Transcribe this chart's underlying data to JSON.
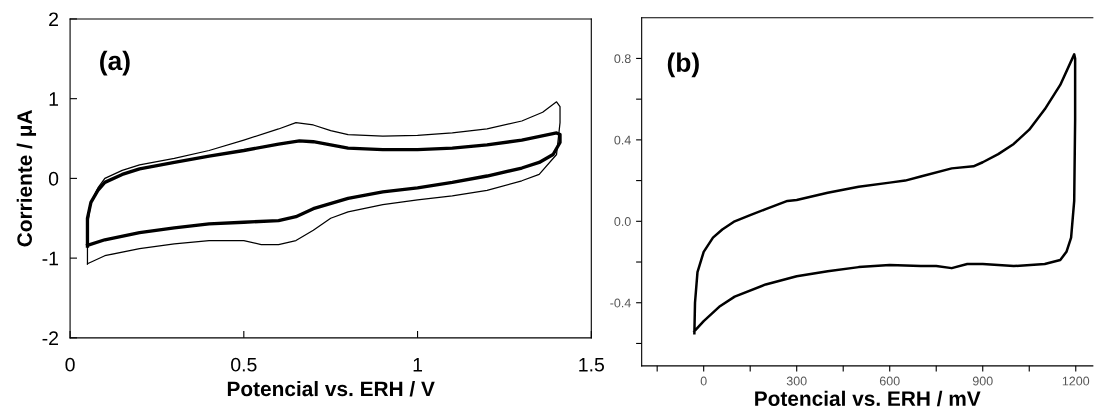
{
  "chart_data": [
    {
      "type": "line",
      "xlabel": "Potencial vs. ERH / V",
      "ylabel": "Corriente / μA",
      "annotations": [
        "(a)"
      ],
      "xlim": [
        0,
        1.5
      ],
      "ylim": [
        -2,
        2
      ],
      "xticks": [
        0,
        0.5,
        1,
        1.5
      ],
      "yticks": [
        {
          "value": -2,
          "label": "-2"
        },
        {
          "value": -1,
          "label": "-1"
        },
        0,
        1,
        2
      ],
      "grid": false,
      "legend": false,
      "marker": "none",
      "line_style": "solid",
      "series": [
        {
          "color": "#000000",
          "x": [
            0.05,
            0.05,
            0.06,
            0.08,
            0.1,
            0.15,
            0.2,
            0.3,
            0.4,
            0.5,
            0.6,
            0.66,
            0.7,
            0.8,
            0.9,
            1.0,
            1.1,
            1.2,
            1.3,
            1.4,
            1.41,
            1.41,
            1.39,
            1.35,
            1.3,
            1.2,
            1.1,
            1.0,
            0.9,
            0.8,
            0.7,
            0.65,
            0.6,
            0.5,
            0.4,
            0.3,
            0.2,
            0.1,
            0.05
          ],
          "values": [
            -0.85,
            -0.5,
            -0.3,
            -0.15,
            -0.05,
            0.05,
            0.12,
            0.2,
            0.28,
            0.35,
            0.43,
            0.47,
            0.46,
            0.38,
            0.36,
            0.36,
            0.38,
            0.42,
            0.48,
            0.57,
            0.55,
            0.45,
            0.3,
            0.2,
            0.13,
            0.03,
            -0.05,
            -0.12,
            -0.17,
            -0.25,
            -0.38,
            -0.48,
            -0.53,
            -0.55,
            -0.57,
            -0.62,
            -0.68,
            -0.77,
            -0.84
          ]
        },
        {
          "color": "#000000",
          "x": [
            0.05,
            0.05,
            0.06,
            0.08,
            0.1,
            0.15,
            0.2,
            0.3,
            0.4,
            0.5,
            0.6,
            0.65,
            0.7,
            0.75,
            0.8,
            0.9,
            1.0,
            1.1,
            1.2,
            1.3,
            1.36,
            1.4,
            1.41,
            1.41,
            1.4,
            1.35,
            1.3,
            1.2,
            1.1,
            1.0,
            0.9,
            0.8,
            0.75,
            0.7,
            0.65,
            0.6,
            0.55,
            0.5,
            0.4,
            0.3,
            0.2,
            0.1,
            0.05
          ],
          "values": [
            -1.08,
            -0.6,
            -0.3,
            -0.12,
            0.0,
            0.1,
            0.17,
            0.25,
            0.35,
            0.48,
            0.62,
            0.7,
            0.67,
            0.6,
            0.55,
            0.53,
            0.54,
            0.57,
            0.62,
            0.72,
            0.83,
            0.96,
            0.9,
            0.7,
            0.3,
            0.05,
            -0.03,
            -0.15,
            -0.22,
            -0.27,
            -0.33,
            -0.42,
            -0.5,
            -0.65,
            -0.78,
            -0.83,
            -0.83,
            -0.78,
            -0.78,
            -0.82,
            -0.88,
            -0.97,
            -1.07
          ]
        }
      ]
    },
    {
      "type": "line",
      "xlabel": "Potencial vs. ERH / mV",
      "annotations": [
        "(b)"
      ],
      "xlim": [
        -200,
        1255
      ],
      "ylim": [
        -0.71,
        1.0
      ],
      "xticks": [
        {
          "value": -150,
          "label": null
        },
        0,
        {
          "value": 150,
          "label": null
        },
        300,
        {
          "value": 450,
          "label": null
        },
        600,
        {
          "value": 750,
          "label": null
        },
        900,
        {
          "value": 1050,
          "label": null
        },
        1200
      ],
      "yticks": [
        {
          "value": -0.6,
          "label": null
        },
        {
          "value": -0.4,
          "label": "-0.4"
        },
        {
          "value": -0.2,
          "label": null
        },
        {
          "value": 0.0,
          "label": "0.0"
        },
        {
          "value": 0.2,
          "label": null
        },
        0.4,
        {
          "value": 0.6,
          "label": null
        },
        0.8
      ],
      "grid": false,
      "legend": false,
      "marker": "none",
      "line_style": "solid",
      "series": [
        {
          "color": "#000000",
          "x": [
            -30,
            -28,
            -20,
            0,
            30,
            60,
            100,
            150,
            200,
            270,
            300,
            400,
            500,
            600,
            650,
            700,
            800,
            870,
            900,
            950,
            1000,
            1050,
            1100,
            1150,
            1195,
            1198,
            1198,
            1195,
            1185,
            1170,
            1150,
            1100,
            1000,
            900,
            850,
            800,
            750,
            700,
            600,
            500,
            400,
            300,
            200,
            100,
            50,
            0,
            -30
          ],
          "values": [
            -0.55,
            -0.4,
            -0.25,
            -0.15,
            -0.08,
            -0.04,
            0.0,
            0.03,
            0.06,
            0.1,
            0.105,
            0.14,
            0.17,
            0.19,
            0.2,
            0.22,
            0.26,
            0.27,
            0.29,
            0.33,
            0.38,
            0.45,
            0.55,
            0.67,
            0.82,
            0.8,
            0.5,
            0.1,
            -0.08,
            -0.15,
            -0.19,
            -0.21,
            -0.22,
            -0.21,
            -0.21,
            -0.23,
            -0.22,
            -0.22,
            -0.215,
            -0.225,
            -0.245,
            -0.27,
            -0.31,
            -0.37,
            -0.42,
            -0.49,
            -0.54
          ]
        }
      ]
    }
  ]
}
